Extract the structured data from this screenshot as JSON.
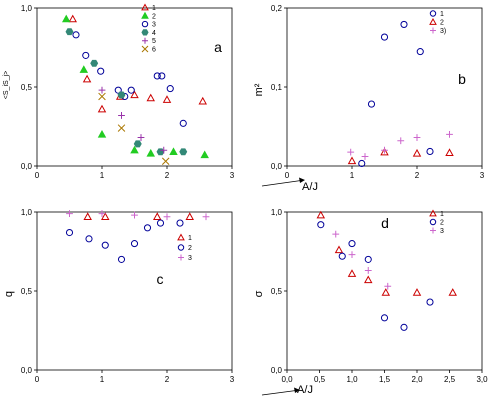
{
  "chart_data": [
    {
      "panel": "a",
      "type": "scatter",
      "ylabel": "<S_iS_j>",
      "xlim": [
        0,
        3
      ],
      "ylim": [
        0,
        1
      ],
      "x_ticks": [
        "0",
        "1",
        "2",
        "3"
      ],
      "y_ticks": [
        "0,0",
        "0,5",
        "1,0"
      ],
      "series": [
        {
          "name": "1",
          "marker": "triangle-open",
          "color": "#cc0000",
          "points": [
            [
              0.55,
              0.93
            ],
            [
              0.77,
              0.55
            ],
            [
              1.0,
              0.36
            ],
            [
              1.28,
              0.44
            ],
            [
              1.5,
              0.45
            ],
            [
              1.75,
              0.43
            ],
            [
              2.0,
              0.42
            ],
            [
              2.55,
              0.41
            ]
          ]
        },
        {
          "name": "2",
          "marker": "triangle-filled",
          "color": "#22cc22",
          "points": [
            [
              0.45,
              0.93
            ],
            [
              0.72,
              0.61
            ],
            [
              1.0,
              0.2
            ],
            [
              1.5,
              0.1
            ],
            [
              1.75,
              0.08
            ],
            [
              2.1,
              0.09
            ],
            [
              2.58,
              0.07
            ]
          ]
        },
        {
          "name": "3",
          "marker": "circle-open",
          "color": "#000099",
          "points": [
            [
              0.6,
              0.83
            ],
            [
              0.75,
              0.7
            ],
            [
              0.98,
              0.6
            ],
            [
              1.25,
              0.48
            ],
            [
              1.35,
              0.44
            ],
            [
              1.45,
              0.48
            ],
            [
              1.85,
              0.57
            ],
            [
              1.92,
              0.57
            ],
            [
              2.05,
              0.49
            ],
            [
              2.25,
              0.27
            ]
          ]
        },
        {
          "name": "4",
          "marker": "hexagon-filled",
          "color": "#338877",
          "points": [
            [
              0.5,
              0.85
            ],
            [
              0.88,
              0.65
            ],
            [
              1.3,
              0.45
            ],
            [
              1.55,
              0.14
            ],
            [
              1.9,
              0.09
            ],
            [
              2.25,
              0.09
            ]
          ]
        },
        {
          "name": "5",
          "marker": "plus",
          "color": "#9933aa",
          "points": [
            [
              1.0,
              0.48
            ],
            [
              1.3,
              0.32
            ],
            [
              1.6,
              0.18
            ],
            [
              1.95,
              0.1
            ]
          ]
        },
        {
          "name": "6",
          "marker": "cross",
          "color": "#aa7700",
          "points": [
            [
              1.0,
              0.44
            ],
            [
              1.3,
              0.24
            ],
            [
              1.98,
              0.03
            ]
          ]
        }
      ]
    },
    {
      "panel": "b",
      "type": "scatter",
      "ylabel": "m²",
      "xlabel": "A/J",
      "xlim": [
        0,
        3
      ],
      "ylim": [
        0,
        0.25
      ],
      "x_ticks": [
        "0",
        "1",
        "2",
        "3"
      ],
      "y_ticks": [
        "0,0",
        "0,1",
        "0,2"
      ],
      "series": [
        {
          "name": "1",
          "marker": "circle-open",
          "color": "#000099",
          "points": [
            [
              1.15,
              0.004
            ],
            [
              1.3,
              0.098
            ],
            [
              1.5,
              0.204
            ],
            [
              1.8,
              0.224
            ],
            [
              2.05,
              0.181
            ],
            [
              2.2,
              0.023
            ]
          ]
        },
        {
          "name": "2",
          "marker": "triangle-open",
          "color": "#cc0000",
          "points": [
            [
              1.0,
              0.008
            ],
            [
              1.5,
              0.022
            ],
            [
              2.0,
              0.02
            ],
            [
              2.5,
              0.021
            ]
          ]
        },
        {
          "name": "3)",
          "marker": "plus",
          "color": "#cc66cc",
          "points": [
            [
              0.98,
              0.022
            ],
            [
              1.2,
              0.015
            ],
            [
              1.5,
              0.025
            ],
            [
              1.75,
              0.04
            ],
            [
              2.0,
              0.045
            ],
            [
              2.5,
              0.05
            ]
          ]
        }
      ]
    },
    {
      "panel": "c",
      "type": "scatter",
      "ylabel": "q",
      "xlim": [
        0,
        3
      ],
      "ylim": [
        0,
        1
      ],
      "x_ticks": [
        "0",
        "1",
        "2",
        "3"
      ],
      "y_ticks": [
        "0,0",
        "0,5",
        "1,0"
      ],
      "series": [
        {
          "name": "1",
          "marker": "triangle-open",
          "color": "#cc0000",
          "points": [
            [
              0.78,
              0.97
            ],
            [
              1.05,
              0.97
            ],
            [
              1.85,
              0.97
            ],
            [
              2.35,
              0.97
            ]
          ]
        },
        {
          "name": "2",
          "marker": "circle-open",
          "color": "#000099",
          "points": [
            [
              0.5,
              0.87
            ],
            [
              0.8,
              0.83
            ],
            [
              1.05,
              0.79
            ],
            [
              1.3,
              0.7
            ],
            [
              1.5,
              0.8
            ],
            [
              1.7,
              0.9
            ],
            [
              1.9,
              0.93
            ],
            [
              2.2,
              0.93
            ]
          ]
        },
        {
          "name": "3",
          "marker": "plus",
          "color": "#cc66cc",
          "points": [
            [
              0.5,
              0.99
            ],
            [
              1.0,
              0.99
            ],
            [
              1.5,
              0.98
            ],
            [
              2.0,
              0.97
            ],
            [
              2.6,
              0.97
            ]
          ]
        }
      ]
    },
    {
      "panel": "d",
      "type": "scatter",
      "ylabel": "σ",
      "xlabel": "A/J",
      "xlim": [
        0,
        3
      ],
      "ylim": [
        0,
        1
      ],
      "x_ticks": [
        "0,0",
        "0,5",
        "1,0",
        "1,5",
        "2,0",
        "2,5",
        "3,0"
      ],
      "y_ticks": [
        "0,0",
        "0,5",
        "1,0"
      ],
      "series": [
        {
          "name": "1",
          "marker": "triangle-open",
          "color": "#cc0000",
          "points": [
            [
              0.52,
              0.98
            ],
            [
              0.8,
              0.76
            ],
            [
              1.0,
              0.61
            ],
            [
              1.25,
              0.57
            ],
            [
              1.52,
              0.49
            ],
            [
              2.0,
              0.49
            ],
            [
              2.55,
              0.49
            ]
          ]
        },
        {
          "name": "2",
          "marker": "circle-open",
          "color": "#000099",
          "points": [
            [
              0.52,
              0.92
            ],
            [
              0.85,
              0.72
            ],
            [
              1.0,
              0.8
            ],
            [
              1.25,
              0.7
            ],
            [
              1.5,
              0.33
            ],
            [
              1.8,
              0.27
            ],
            [
              2.2,
              0.43
            ]
          ]
        },
        {
          "name": "3",
          "marker": "plus",
          "color": "#cc66cc",
          "points": [
            [
              0.75,
              0.86
            ],
            [
              1.0,
              0.73
            ],
            [
              1.25,
              0.63
            ],
            [
              1.55,
              0.53
            ]
          ]
        }
      ]
    }
  ],
  "labels": {
    "a": "a",
    "b": "b",
    "c": "c",
    "d": "d",
    "ylab_a": "<S_iS_j>",
    "ylab_b": "m²",
    "ylab_c": "q",
    "ylab_d": "σ",
    "xlab_b": "A/J",
    "xlab_d": "A/J"
  }
}
